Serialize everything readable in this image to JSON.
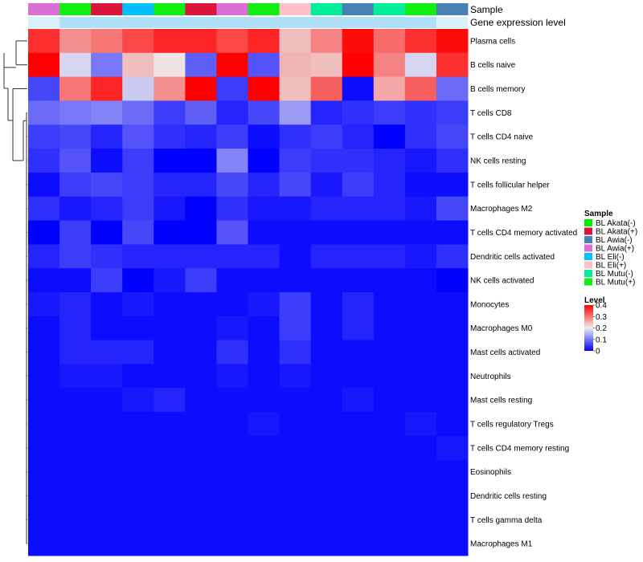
{
  "chart_data": {
    "type": "heatmap",
    "annotation_titles": [
      "Sample",
      "Gene expression level"
    ],
    "columns": [
      "BL Awia(+)",
      "BL Mutu(+)",
      "BL Akata(+)",
      "BL Eli(-)",
      "BL Mutu(+)",
      "BL Akata(+)",
      "BL Awia(+)",
      "BL Mutu(+)",
      "BL Eli(+)",
      "BL Mutu(-)",
      "BL Awia(-)",
      "BL Mutu(-)",
      "BL Mutu(+)",
      "BL Awia(-)"
    ],
    "rows": [
      "Plasma cells",
      "B cells naive",
      "B cells memory",
      "T cells CD8",
      "T cells CD4 naive",
      "NK cells resting",
      "T cells follicular helper",
      "Macrophages M2",
      "T cells CD4 memory activated",
      "Dendritic cells activated",
      "NK cells activated",
      "Monocytes",
      "Macrophages M0",
      "Mast cells activated",
      "Neutrophils",
      "Mast cells resting",
      "T cells regulatory  Tregs",
      "T cells CD4 memory resting",
      "Eosinophils",
      "Dendritic cells resting",
      "T cells gamma delta",
      "Macrophages M1"
    ],
    "values": [
      [
        0.36,
        0.28,
        0.3,
        0.34,
        0.37,
        0.37,
        0.34,
        0.37,
        0.24,
        0.29,
        0.39,
        0.31,
        0.36,
        0.39
      ],
      [
        0.41,
        0.18,
        0.1,
        0.24,
        0.21,
        0.08,
        0.41,
        0.07,
        0.25,
        0.24,
        0.41,
        0.29,
        0.18,
        0.36
      ],
      [
        0.06,
        0.3,
        0.37,
        0.17,
        0.28,
        0.4,
        0.05,
        0.41,
        0.24,
        0.32,
        0.01,
        0.26,
        0.32,
        0.09
      ],
      [
        0.09,
        0.1,
        0.11,
        0.09,
        0.05,
        0.08,
        0.03,
        0.06,
        0.13,
        0.03,
        0.04,
        0.05,
        0.04,
        0.05
      ],
      [
        0.05,
        0.06,
        0.03,
        0.07,
        0.04,
        0.03,
        0.05,
        0.01,
        0.04,
        0.05,
        0.03,
        0.0,
        0.04,
        0.06
      ],
      [
        0.04,
        0.07,
        0.01,
        0.05,
        0.0,
        0.0,
        0.11,
        0.0,
        0.05,
        0.04,
        0.04,
        0.03,
        0.02,
        0.04
      ],
      [
        0.01,
        0.05,
        0.06,
        0.05,
        0.03,
        0.03,
        0.06,
        0.03,
        0.06,
        0.02,
        0.05,
        0.03,
        0.01,
        0.01
      ],
      [
        0.04,
        0.02,
        0.03,
        0.05,
        0.02,
        0.0,
        0.04,
        0.02,
        0.02,
        0.03,
        0.03,
        0.03,
        0.02,
        0.06
      ],
      [
        0.0,
        0.05,
        0.0,
        0.06,
        0.0,
        0.0,
        0.07,
        0.01,
        0.01,
        0.01,
        0.01,
        0.01,
        0.01,
        0.01
      ],
      [
        0.03,
        0.05,
        0.04,
        0.03,
        0.03,
        0.03,
        0.03,
        0.03,
        0.01,
        0.03,
        0.03,
        0.03,
        0.02,
        0.04
      ],
      [
        0.01,
        0.01,
        0.05,
        0.0,
        0.02,
        0.05,
        0.01,
        0.01,
        0.01,
        0.01,
        0.01,
        0.01,
        0.01,
        0.0
      ],
      [
        0.02,
        0.03,
        0.01,
        0.02,
        0.01,
        0.01,
        0.01,
        0.02,
        0.05,
        0.01,
        0.03,
        0.01,
        0.01,
        0.01
      ],
      [
        0.01,
        0.03,
        0.01,
        0.01,
        0.01,
        0.01,
        0.02,
        0.01,
        0.05,
        0.01,
        0.03,
        0.01,
        0.01,
        0.01
      ],
      [
        0.01,
        0.03,
        0.03,
        0.03,
        0.01,
        0.01,
        0.04,
        0.01,
        0.04,
        0.01,
        0.01,
        0.01,
        0.01,
        0.01
      ],
      [
        0.01,
        0.02,
        0.02,
        0.01,
        0.01,
        0.01,
        0.02,
        0.01,
        0.02,
        0.01,
        0.01,
        0.01,
        0.01,
        0.01
      ],
      [
        0.01,
        0.01,
        0.01,
        0.02,
        0.03,
        0.01,
        0.01,
        0.01,
        0.01,
        0.01,
        0.02,
        0.01,
        0.01,
        0.01
      ],
      [
        0.01,
        0.01,
        0.01,
        0.01,
        0.01,
        0.01,
        0.01,
        0.02,
        0.01,
        0.01,
        0.01,
        0.01,
        0.02,
        0.01
      ],
      [
        0.01,
        0.01,
        0.01,
        0.01,
        0.01,
        0.01,
        0.01,
        0.01,
        0.01,
        0.01,
        0.01,
        0.01,
        0.01,
        0.02
      ],
      [
        0.01,
        0.01,
        0.01,
        0.01,
        0.01,
        0.01,
        0.01,
        0.01,
        0.01,
        0.01,
        0.01,
        0.01,
        0.01,
        0.01
      ],
      [
        0.01,
        0.01,
        0.01,
        0.01,
        0.01,
        0.01,
        0.01,
        0.01,
        0.01,
        0.01,
        0.01,
        0.01,
        0.01,
        0.01
      ],
      [
        0.01,
        0.01,
        0.01,
        0.01,
        0.01,
        0.01,
        0.01,
        0.01,
        0.01,
        0.01,
        0.01,
        0.01,
        0.01,
        0.01
      ],
      [
        0.01,
        0.01,
        0.01,
        0.01,
        0.01,
        0.01,
        0.01,
        0.01,
        0.01,
        0.01,
        0.01,
        0.01,
        0.01,
        0.01
      ]
    ],
    "color_scale": {
      "min": 0,
      "mid": 0.2,
      "max": 0.4,
      "colors": [
        "#0000ff",
        "#eeeeee",
        "#ff0000"
      ]
    },
    "legend_sample": {
      "title": "Sample",
      "entries": [
        {
          "label": "BL Akata(-)",
          "color": "#00ee00"
        },
        {
          "label": "BL Akata(+)",
          "color": "#dc143c"
        },
        {
          "label": "BL Awia(-)",
          "color": "#4682b4"
        },
        {
          "label": "BL Awia(+)",
          "color": "#da70d6"
        },
        {
          "label": "BL Eli(-)",
          "color": "#00bfff"
        },
        {
          "label": "BL Eli(+)",
          "color": "#ffc0cb"
        },
        {
          "label": "BL Mutu(-)",
          "color": "#00ee99"
        },
        {
          "label": "BL Mutu(+)",
          "color": "#11ee11"
        }
      ]
    },
    "legend_level": {
      "title": "Level",
      "ticks": [
        "0.4",
        "0.3",
        "0.2",
        "0.1",
        "0"
      ]
    },
    "gene_expression_color": "#b0e0f8",
    "gene_expression_color_light": "#d9f1fb",
    "dendrogram": "rows"
  }
}
